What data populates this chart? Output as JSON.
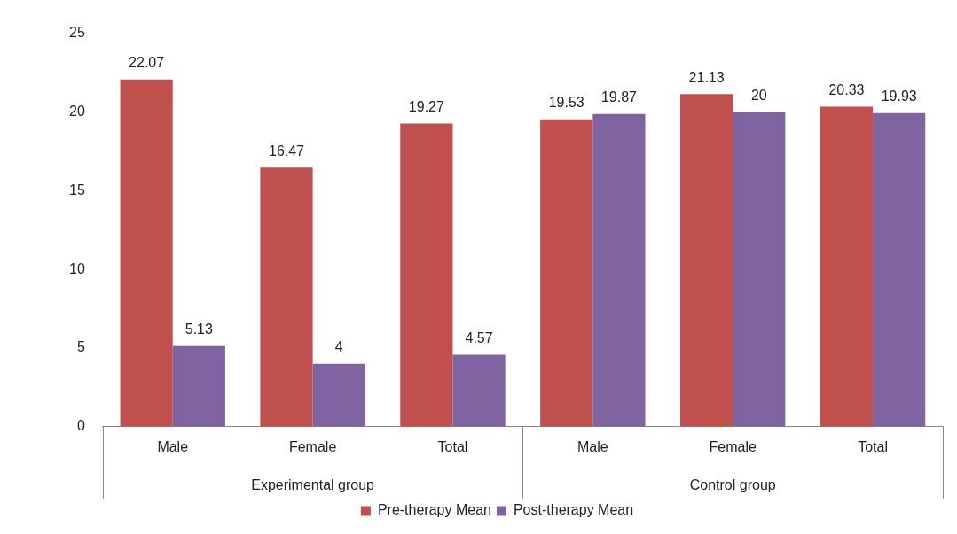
{
  "chart_data": {
    "type": "bar",
    "categories": [
      "Male",
      "Female",
      "Total",
      "Male",
      "Female",
      "Total"
    ],
    "series": [
      {
        "name": "Pre-therapy Mean",
        "color": "#c0504d",
        "values": [
          22.07,
          16.47,
          19.27,
          19.53,
          21.13,
          20.33
        ]
      },
      {
        "name": "Post-therapy Mean",
        "color": "#8064a2",
        "values": [
          5.13,
          4,
          4.57,
          19.87,
          20,
          19.93
        ]
      }
    ],
    "annotations": [
      "Experimental group",
      "Control group"
    ],
    "ylim": [
      0,
      25
    ],
    "yticks": [
      0,
      5,
      10,
      15,
      20,
      25
    ],
    "grid": false,
    "legend": "bottom",
    "data_labels": true
  }
}
